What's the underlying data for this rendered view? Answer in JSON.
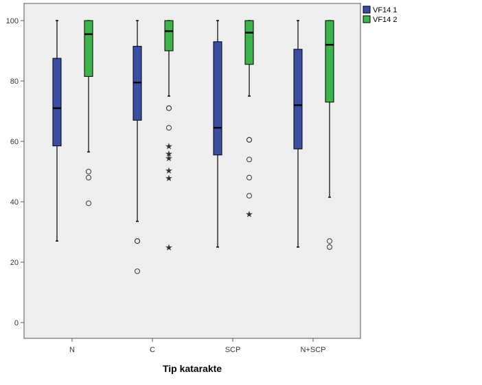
{
  "chart_data": {
    "type": "boxplot",
    "xlabel": "Tip katarakte",
    "ylabel": "",
    "ylim": [
      -5,
      106
    ],
    "yticks": [
      0,
      20,
      40,
      60,
      80,
      100
    ],
    "grid": false,
    "legend_position": "top-right, outside plot",
    "background_color": "#eeeeee",
    "categories": [
      "N",
      "C",
      "SCP",
      "N+SCP"
    ],
    "series": [
      {
        "name": "VF14 1",
        "color": "#3a4fa3",
        "boxes": [
          {
            "min": 27,
            "q1": 58.5,
            "median": 71,
            "q3": 87.5,
            "max": 100,
            "outliers": [],
            "extremes": []
          },
          {
            "min": 33.5,
            "q1": 67,
            "median": 79.5,
            "q3": 91.5,
            "max": 100,
            "outliers": [
              27,
              27,
              17
            ],
            "extremes": []
          },
          {
            "min": 25,
            "q1": 55.5,
            "median": 64.5,
            "q3": 93,
            "max": 100,
            "outliers": [],
            "extremes": []
          },
          {
            "min": 25,
            "q1": 57.5,
            "median": 72,
            "q3": 90.5,
            "max": 100,
            "outliers": [],
            "extremes": []
          }
        ]
      },
      {
        "name": "VF14 2",
        "color": "#3db54a",
        "boxes": [
          {
            "min": 56.5,
            "q1": 81.5,
            "median": 95.5,
            "q3": 100,
            "max": 100,
            "outliers": [
              50,
              48,
              39.5
            ],
            "extremes": []
          },
          {
            "min": 75,
            "q1": 90,
            "median": 96.5,
            "q3": 100,
            "max": 100,
            "outliers": [
              71,
              71,
              64.5
            ],
            "extremes": [
              58.5,
              56,
              54.5,
              50.5,
              48,
              25
            ]
          },
          {
            "min": 75,
            "q1": 85.5,
            "median": 96,
            "q3": 100,
            "max": 100,
            "outliers": [
              60.5,
              60.5,
              54,
              48,
              42
            ],
            "extremes": [
              36
            ]
          },
          {
            "min": 41.5,
            "q1": 73,
            "median": 92,
            "q3": 100,
            "max": 100,
            "outliers": [
              27,
              25
            ],
            "extremes": []
          }
        ]
      }
    ]
  }
}
